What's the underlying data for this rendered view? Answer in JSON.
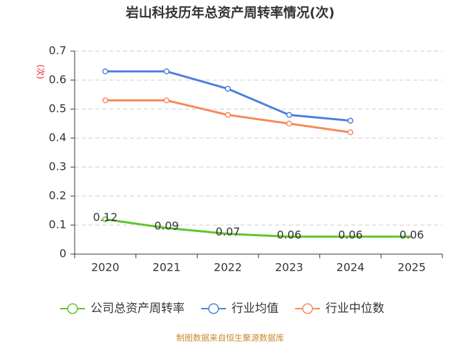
{
  "chart_data": {
    "type": "line",
    "title": "岩山科技历年总资产周转率情况(次)",
    "y_label": "(次)",
    "source": "制图数据来自恒生聚源数据库",
    "categories": [
      "2020",
      "2021",
      "2022",
      "2023",
      "2024",
      "2025"
    ],
    "series": [
      {
        "name": "公司总资产周转率",
        "color": "#5ec42d",
        "values": [
          0.12,
          0.09,
          0.07,
          0.06,
          0.06,
          0.06
        ],
        "data_labels": true
      },
      {
        "name": "行业均值",
        "color": "#4e7fdc",
        "values": [
          0.63,
          0.63,
          0.57,
          0.48,
          0.46,
          null
        ],
        "markers": true
      },
      {
        "name": "行业中位数",
        "color": "#f5895a",
        "values": [
          0.53,
          0.53,
          0.48,
          0.45,
          0.42,
          null
        ],
        "markers": true
      }
    ],
    "ylim": [
      0,
      0.7
    ],
    "yticks": [
      0,
      0.1,
      0.2,
      0.3,
      0.4,
      0.5,
      0.6,
      0.7
    ],
    "grid": true
  }
}
